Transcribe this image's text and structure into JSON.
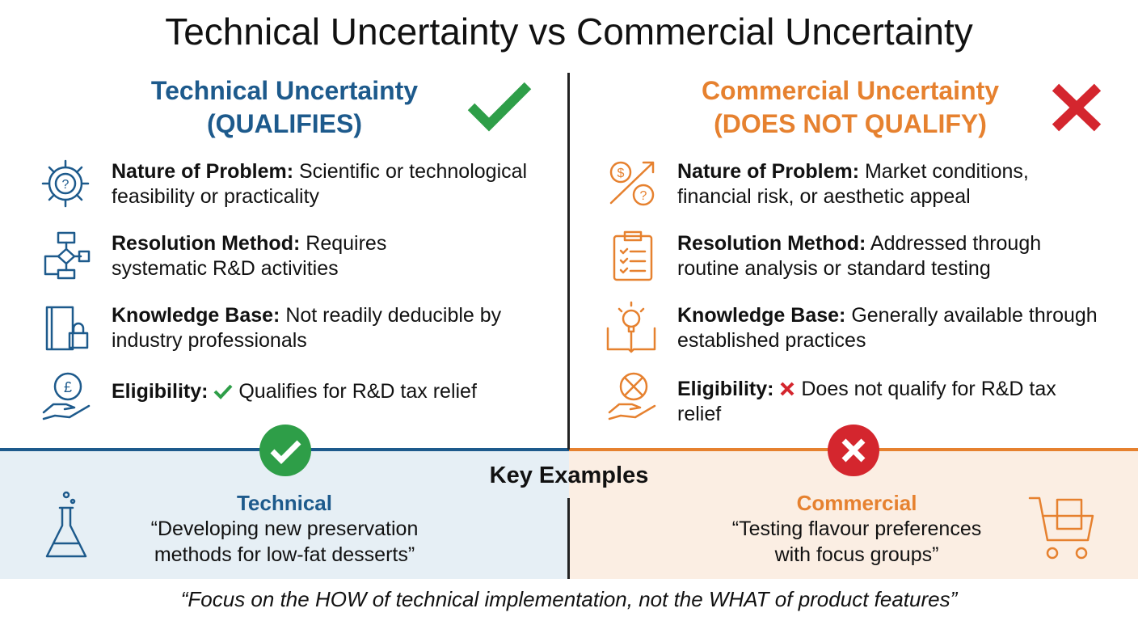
{
  "title": "Technical Uncertainty vs Commercial Uncertainty",
  "columns": [
    {
      "heading": [
        "Technical Uncertainty",
        "(QUALIFIES)"
      ],
      "items": [
        {
          "label": "Nature of Problem:",
          "text": "Scientific or technological feasibility or practicality"
        },
        {
          "label": "Resolution Method:",
          "text": "Requires systematic R&D activities"
        },
        {
          "label": "Knowledge Base:",
          "text": "Not readily deducible by industry professionals"
        },
        {
          "label": "Eligibility:",
          "text": "Qualifies for R&D tax relief"
        }
      ]
    },
    {
      "heading": [
        "Commercial Uncertainty",
        "(DOES NOT QUALIFY)"
      ],
      "items": [
        {
          "label": "Nature of Problem:",
          "text": "Market conditions, financial risk, or aesthetic appeal"
        },
        {
          "label": "Resolution Method:",
          "text": "Addressed through routine analysis or standard testing"
        },
        {
          "label": "Knowledge Base:",
          "text": "Generally available through established practices"
        },
        {
          "label": "Eligibility:",
          "text": "Does not qualify for R&D tax relief"
        }
      ]
    }
  ],
  "examples": {
    "heading": "Key Examples",
    "items": [
      {
        "label": "Technical",
        "quote": [
          "“Developing new preservation",
          "methods for low-fat desserts”"
        ]
      },
      {
        "label": "Commercial",
        "quote": [
          "“Testing flavour preferences",
          "with focus groups”"
        ]
      }
    ]
  },
  "footer": "“Focus on the HOW of technical implementation, not the WHAT of product features”"
}
